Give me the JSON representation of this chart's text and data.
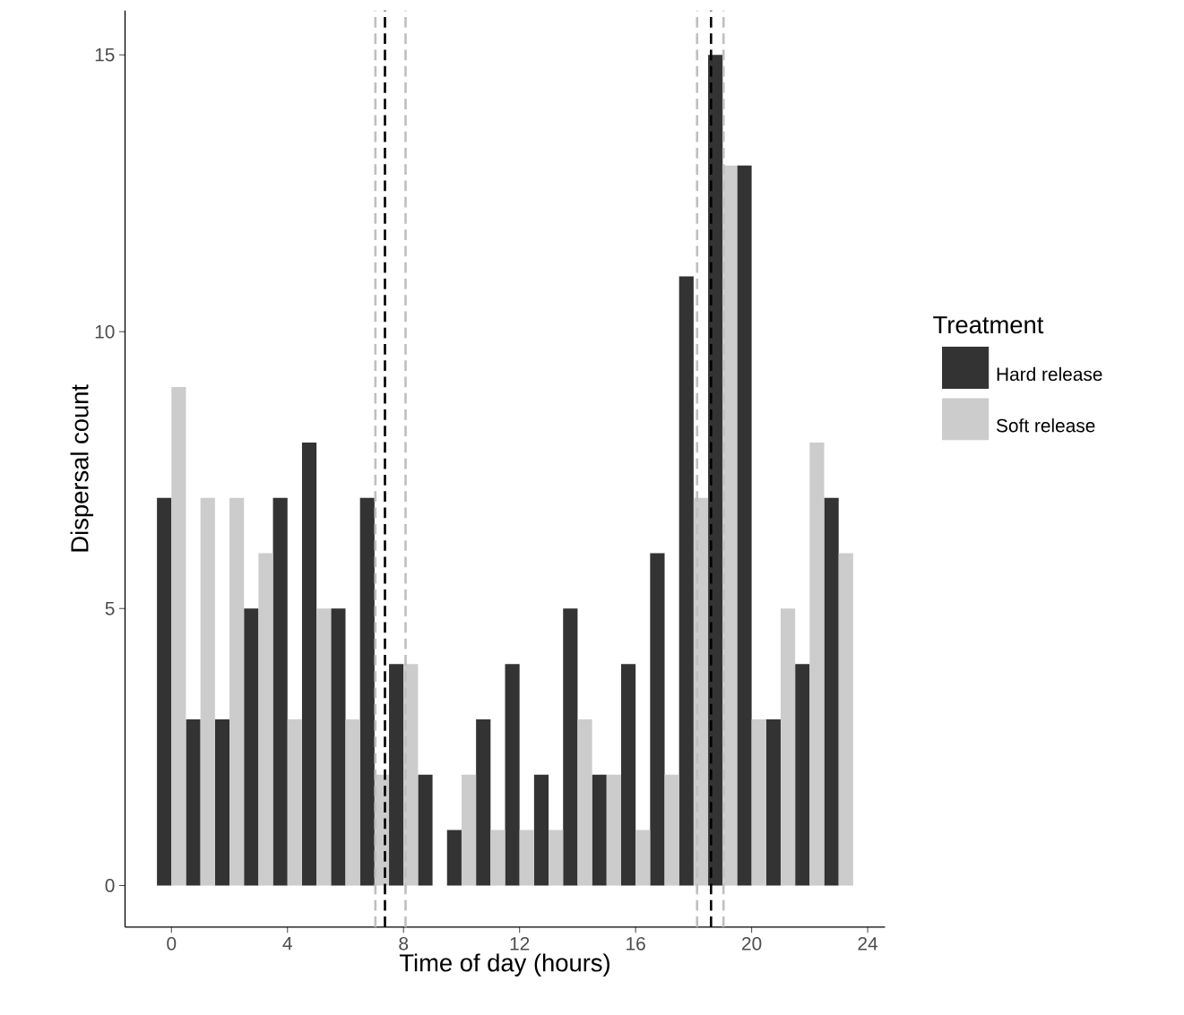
{
  "chart_data": {
    "type": "bar",
    "xlabel": "Time of day (hours)",
    "ylabel": "Dispersal count",
    "legend_title": "Treatment",
    "legend": "right",
    "x": [
      0,
      1,
      2,
      3,
      4,
      5,
      6,
      7,
      8,
      9,
      10,
      11,
      12,
      13,
      14,
      15,
      16,
      17,
      18,
      19,
      20,
      21,
      22,
      23
    ],
    "series": [
      {
        "name": "Hard release",
        "color": "#333333",
        "values": [
          7,
          3,
          3,
          5,
          7,
          8,
          5,
          7,
          4,
          2,
          1,
          3,
          4,
          2,
          5,
          2,
          4,
          6,
          11,
          15,
          13,
          3,
          4,
          7
        ]
      },
      {
        "name": "Soft release",
        "color": "#cccccc",
        "values": [
          9,
          7,
          7,
          6,
          3,
          5,
          3,
          2,
          4,
          0,
          2,
          1,
          1,
          1,
          3,
          2,
          1,
          2,
          7,
          13,
          3,
          5,
          8,
          6
        ]
      }
    ],
    "xlim": [
      -1.6,
      24.6
    ],
    "ylim": [
      -0.75,
      15.8
    ],
    "xticks": [
      0,
      4,
      8,
      12,
      16,
      20,
      24
    ],
    "yticks": [
      0,
      5,
      10,
      15
    ],
    "ref_lines": [
      {
        "axis": "x",
        "value": 7.03,
        "color": "#bfbfbf",
        "line_style": "dashed"
      },
      {
        "axis": "x",
        "value": 8.07,
        "color": "#bfbfbf",
        "line_style": "dashed"
      },
      {
        "axis": "x",
        "value": 7.36,
        "color": "#000000",
        "line_style": "dashed"
      },
      {
        "axis": "x",
        "value": 18.12,
        "color": "#bfbfbf",
        "line_style": "dashed"
      },
      {
        "axis": "x",
        "value": 19.03,
        "color": "#bfbfbf",
        "line_style": "dashed"
      },
      {
        "axis": "x",
        "value": 18.6,
        "color": "#000000",
        "line_style": "dashed"
      }
    ],
    "grid": false
  }
}
